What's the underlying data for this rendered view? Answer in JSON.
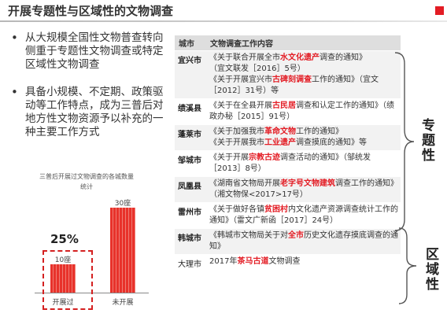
{
  "header": {
    "title": "开展专题性与区域性的文物调查"
  },
  "bullets": [
    "从大规模全国性文物普查转向侧重于专题性文物调查或特定区域性文物调查",
    "具备小规模、不定期、政策驱动等工作特点，成为三普后对地方性文物资源予以补充的一种主要工作方式"
  ],
  "chart_data": {
    "type": "bar",
    "title": "三普后开展过文物调查的各城数量统计",
    "categories": [
      "开展过",
      "未开展"
    ],
    "values": [
      10,
      30
    ],
    "value_labels": [
      "10座",
      "30座"
    ],
    "annotation": "25%",
    "bar_color": "#e8322b",
    "highlight_color": "#d42020"
  },
  "table": {
    "headers": {
      "city": "城市",
      "content": "文物调查工作内容"
    },
    "rows": [
      {
        "city": "宜兴市",
        "docs": [
          [
            [
              "《关于联合开展全市",
              false
            ],
            [
              "水文化遗产",
              true
            ],
            [
              "调查的通知》",
              false
            ]
          ],
          [
            [
              "（宜文联发［2016］5号）",
              false
            ]
          ],
          [
            [
              "《关于开展宜兴市",
              false
            ],
            [
              "古碑刻调查",
              true
            ],
            [
              "工作的通知》（宜文［2012］31号）等",
              false
            ]
          ]
        ]
      },
      {
        "city": "绩溪县",
        "docs": [
          [
            [
              "《关于在全县开展",
              false
            ],
            [
              "古民居",
              true
            ],
            [
              "调查和认定工作的通知》（绩政办秘［2015］91号）",
              false
            ]
          ]
        ]
      },
      {
        "city": "蓬莱市",
        "docs": [
          [
            [
              "《关于加强我市",
              false
            ],
            [
              "革命文物",
              true
            ],
            [
              "工作的通知》",
              false
            ]
          ],
          [
            [
              "《关于开展我市",
              false
            ],
            [
              "工业遗产",
              true
            ],
            [
              "调查摸底的通知》等",
              false
            ]
          ]
        ]
      },
      {
        "city": "邹城市",
        "docs": [
          [
            [
              "《关于开展",
              false
            ],
            [
              "宗教古迹",
              true
            ],
            [
              "调查活动的通知》（邹统发［2013］8号）",
              false
            ]
          ]
        ]
      },
      {
        "city": "凤凰县",
        "docs": [
          [
            [
              "《湖南省文物局开展",
              false
            ],
            [
              "老字号文物建筑",
              true
            ],
            [
              "调查工作的通知》（湘文物保<2017>17号）",
              false
            ]
          ]
        ]
      },
      {
        "city": "雷州市",
        "docs": [
          [
            [
              "《关于做好各镇",
              false
            ],
            [
              "贫困村",
              true
            ],
            [
              "内文化遗产资源调查统计工作的通知》（雷文广新函［2017］24号）",
              false
            ]
          ]
        ]
      },
      {
        "city": "韩城市",
        "docs": [
          [
            [
              "《韩城市文物局关于对",
              false
            ],
            [
              "全市",
              true
            ],
            [
              "历史文化遗存摸底调查的通知》",
              false
            ]
          ]
        ]
      },
      {
        "city": "大理市",
        "plain": true,
        "docs": [
          [
            [
              "2017年",
              false
            ],
            [
              "茶马古道",
              true
            ],
            [
              "文物调查",
              false
            ]
          ]
        ]
      }
    ]
  },
  "categories": {
    "thematic": "专题性",
    "regional": "区域性"
  }
}
